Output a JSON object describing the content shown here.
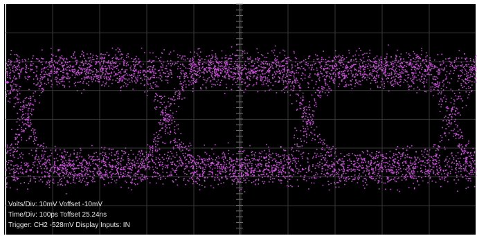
{
  "status_lines": [
    "Volts/Div: 10mV Voffset -10mV",
    "Time/Div: 100ps Toffset 25.24ns",
    "Trigger: CH2 -528mV Display Inputs: IN"
  ]
}
